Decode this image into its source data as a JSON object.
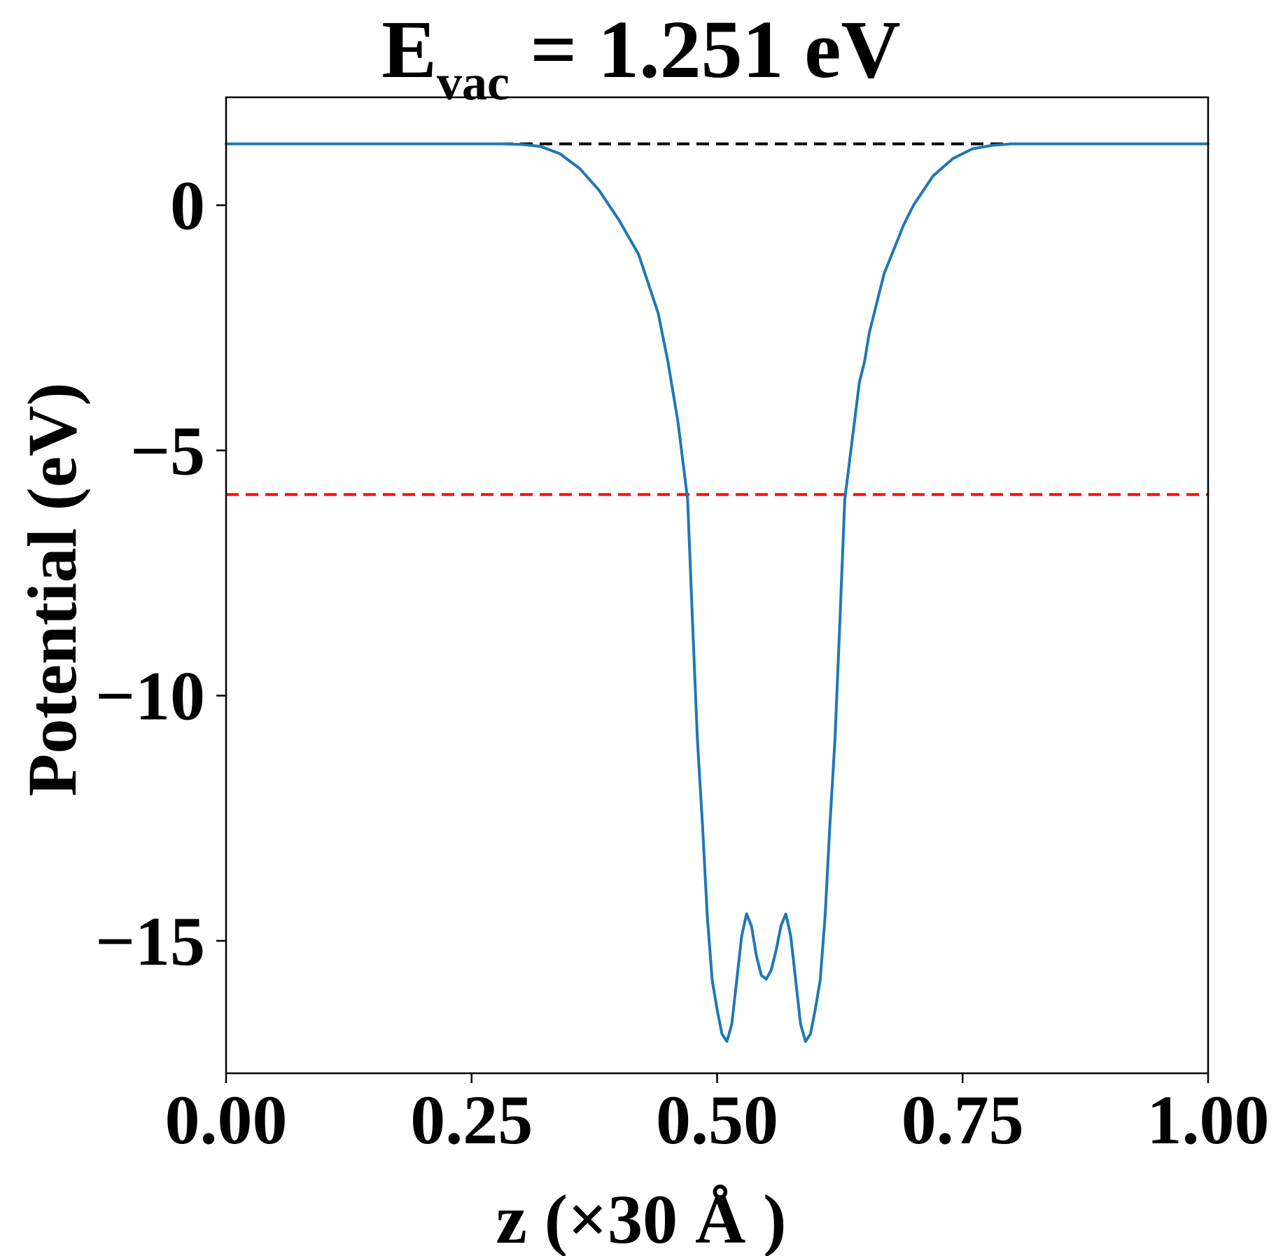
{
  "chart_data": {
    "type": "line",
    "title": {
      "main": "E",
      "subscript": "vac",
      "rest": " = 1.251 eV"
    },
    "xlabel": "z (×30 Å )",
    "ylabel": "Potential (eV)",
    "xlim": [
      0,
      1
    ],
    "ylim": [
      -17.7,
      2.2
    ],
    "x_ticks": [
      0.0,
      0.25,
      0.5,
      0.75,
      1.0
    ],
    "x_tick_labels": [
      "0.00",
      "0.25",
      "0.50",
      "0.75",
      "1.00"
    ],
    "y_ticks": [
      0,
      -5,
      -10,
      -15
    ],
    "y_tick_labels": [
      "0",
      "−5",
      "−10",
      "−15"
    ],
    "grid": false,
    "series": [
      {
        "color": "#1f77b4",
        "x": [
          0.0,
          0.1,
          0.2,
          0.28,
          0.3,
          0.32,
          0.34,
          0.36,
          0.38,
          0.4,
          0.42,
          0.44,
          0.45,
          0.46,
          0.465,
          0.47,
          0.475,
          0.48,
          0.485,
          0.49,
          0.495,
          0.5,
          0.505,
          0.51,
          0.515,
          0.52,
          0.525,
          0.53,
          0.535,
          0.54,
          0.545,
          0.55,
          0.555,
          0.56,
          0.565,
          0.57,
          0.575,
          0.58,
          0.585,
          0.59,
          0.595,
          0.6,
          0.605,
          0.61,
          0.615,
          0.62,
          0.625,
          0.63,
          0.635,
          0.64,
          0.645,
          0.65,
          0.655,
          0.66,
          0.67,
          0.68,
          0.69,
          0.7,
          0.72,
          0.74,
          0.76,
          0.78,
          0.8,
          0.82,
          0.9,
          1.0
        ],
        "y": [
          1.25,
          1.25,
          1.25,
          1.25,
          1.24,
          1.2,
          1.05,
          0.75,
          0.3,
          -0.3,
          -1.0,
          -2.2,
          -3.2,
          -4.4,
          -5.2,
          -6.0,
          -8.5,
          -10.9,
          -12.6,
          -14.5,
          -15.8,
          -16.4,
          -16.9,
          -17.05,
          -16.7,
          -15.8,
          -14.9,
          -14.45,
          -14.7,
          -15.3,
          -15.7,
          -15.78,
          -15.6,
          -15.2,
          -14.7,
          -14.45,
          -14.9,
          -15.8,
          -16.7,
          -17.05,
          -16.9,
          -16.4,
          -15.8,
          -14.5,
          -12.6,
          -10.9,
          -8.5,
          -6.0,
          -5.2,
          -4.4,
          -3.6,
          -3.2,
          -2.6,
          -2.2,
          -1.4,
          -0.9,
          -0.4,
          0.0,
          0.6,
          0.95,
          1.15,
          1.22,
          1.25,
          1.25,
          1.25,
          1.25
        ]
      }
    ],
    "hlines": [
      {
        "y": 1.251,
        "color": "#000000",
        "style": "dashed"
      },
      {
        "y": -5.9,
        "color": "#ff0000",
        "style": "dashed"
      }
    ]
  }
}
